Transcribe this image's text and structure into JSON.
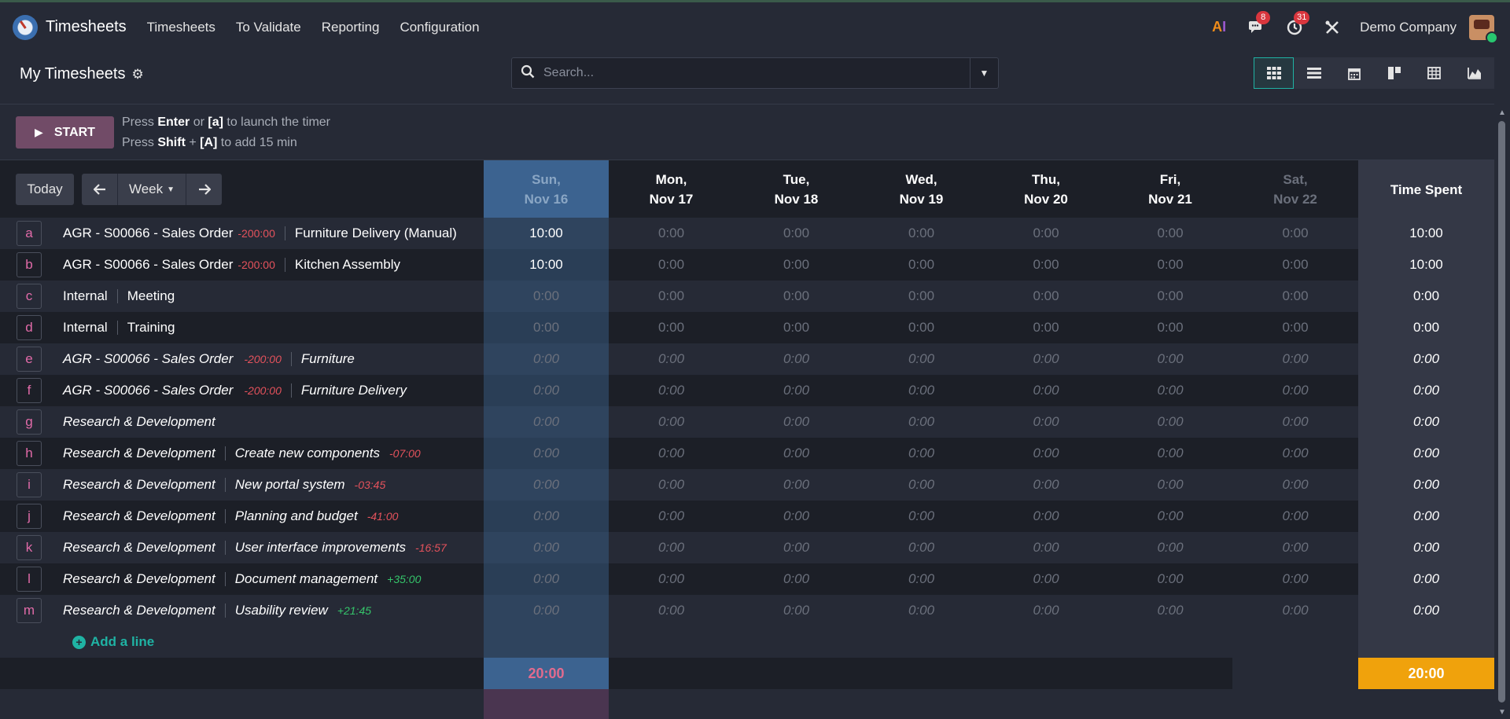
{
  "nav": {
    "brand": "Timesheets",
    "items": [
      "Timesheets",
      "To Validate",
      "Reporting",
      "Configuration"
    ],
    "chat_badge": "8",
    "activity_badge": "31",
    "company": "Demo Company"
  },
  "control": {
    "title": "My Timesheets",
    "search_placeholder": "Search...",
    "views": [
      "grid-view-icon",
      "list-view-icon",
      "calendar-view-icon",
      "kanban-view-icon",
      "pivot-view-icon",
      "graph-view-icon"
    ]
  },
  "timer": {
    "start_label": "START",
    "hint1": {
      "pre": "Press ",
      "key1": "Enter",
      "mid": " or ",
      "key2": "[a]",
      "post": " to launch the timer"
    },
    "hint2": {
      "pre": "Press ",
      "key1": "Shift",
      "mid": " + ",
      "key2": "[A]",
      "post": " to add 15 min"
    }
  },
  "grid": {
    "today_label": "Today",
    "week_label": "Week",
    "days": [
      {
        "l1": "Sun,",
        "l2": "Nov 16"
      },
      {
        "l1": "Mon,",
        "l2": "Nov 17"
      },
      {
        "l1": "Tue,",
        "l2": "Nov 18"
      },
      {
        "l1": "Wed,",
        "l2": "Nov 19"
      },
      {
        "l1": "Thu,",
        "l2": "Nov 20"
      },
      {
        "l1": "Fri,",
        "l2": "Nov 21"
      },
      {
        "l1": "Sat,",
        "l2": "Nov 22"
      }
    ],
    "total_header": "Time Spent",
    "rows": [
      {
        "key": "a",
        "project": "AGR - S00066 - Sales Order",
        "budget": "-200:00",
        "task": "Furniture Delivery (Manual)",
        "italic": false,
        "cells": [
          "10:00",
          "0:00",
          "0:00",
          "0:00",
          "0:00",
          "0:00",
          "0:00"
        ],
        "total": "10:00"
      },
      {
        "key": "b",
        "project": "AGR - S00066 - Sales Order",
        "budget": "-200:00",
        "task": "Kitchen Assembly",
        "italic": false,
        "cells": [
          "10:00",
          "0:00",
          "0:00",
          "0:00",
          "0:00",
          "0:00",
          "0:00"
        ],
        "total": "10:00"
      },
      {
        "key": "c",
        "project": "Internal",
        "budget": "",
        "task": "Meeting",
        "italic": false,
        "cells": [
          "0:00",
          "0:00",
          "0:00",
          "0:00",
          "0:00",
          "0:00",
          "0:00"
        ],
        "total": "0:00"
      },
      {
        "key": "d",
        "project": "Internal",
        "budget": "",
        "task": "Training",
        "italic": false,
        "cells": [
          "0:00",
          "0:00",
          "0:00",
          "0:00",
          "0:00",
          "0:00",
          "0:00"
        ],
        "total": "0:00"
      },
      {
        "key": "e",
        "project": "AGR - S00066 - Sales Order",
        "budget": "-200:00",
        "task": "Furniture",
        "italic": true,
        "cells": [
          "0:00",
          "0:00",
          "0:00",
          "0:00",
          "0:00",
          "0:00",
          "0:00"
        ],
        "total": "0:00"
      },
      {
        "key": "f",
        "project": "AGR - S00066 - Sales Order",
        "budget": "-200:00",
        "task": "Furniture Delivery",
        "italic": true,
        "cells": [
          "0:00",
          "0:00",
          "0:00",
          "0:00",
          "0:00",
          "0:00",
          "0:00"
        ],
        "total": "0:00"
      },
      {
        "key": "g",
        "project": "Research & Development",
        "budget": "",
        "task": "",
        "italic": true,
        "cells": [
          "0:00",
          "0:00",
          "0:00",
          "0:00",
          "0:00",
          "0:00",
          "0:00"
        ],
        "total": "0:00"
      },
      {
        "key": "h",
        "project": "Research & Development",
        "budget": "",
        "task": "Create new components",
        "task_budget": "-07:00",
        "italic": true,
        "cells": [
          "0:00",
          "0:00",
          "0:00",
          "0:00",
          "0:00",
          "0:00",
          "0:00"
        ],
        "total": "0:00"
      },
      {
        "key": "i",
        "project": "Research & Development",
        "budget": "",
        "task": "New portal system",
        "task_budget": "-03:45",
        "italic": true,
        "cells": [
          "0:00",
          "0:00",
          "0:00",
          "0:00",
          "0:00",
          "0:00",
          "0:00"
        ],
        "total": "0:00"
      },
      {
        "key": "j",
        "project": "Research & Development",
        "budget": "",
        "task": "Planning and budget",
        "task_budget": "-41:00",
        "italic": true,
        "cells": [
          "0:00",
          "0:00",
          "0:00",
          "0:00",
          "0:00",
          "0:00",
          "0:00"
        ],
        "total": "0:00"
      },
      {
        "key": "k",
        "project": "Research & Development",
        "budget": "",
        "task": "User interface improvements",
        "task_budget": "-16:57",
        "italic": true,
        "cells": [
          "0:00",
          "0:00",
          "0:00",
          "0:00",
          "0:00",
          "0:00",
          "0:00"
        ],
        "total": "0:00"
      },
      {
        "key": "l",
        "project": "Research & Development",
        "budget": "",
        "task": "Document management",
        "task_budget": "+35:00",
        "italic": true,
        "cells": [
          "0:00",
          "0:00",
          "0:00",
          "0:00",
          "0:00",
          "0:00",
          "0:00"
        ],
        "total": "0:00"
      },
      {
        "key": "m",
        "project": "Research & Development",
        "budget": "",
        "task": "Usability review",
        "task_budget": "+21:45",
        "italic": true,
        "cells": [
          "0:00",
          "0:00",
          "0:00",
          "0:00",
          "0:00",
          "0:00",
          "0:00"
        ],
        "total": "0:00"
      }
    ],
    "add_line": "Add a line",
    "footer_today_total": "20:00",
    "footer_grand_total": "20:00"
  }
}
